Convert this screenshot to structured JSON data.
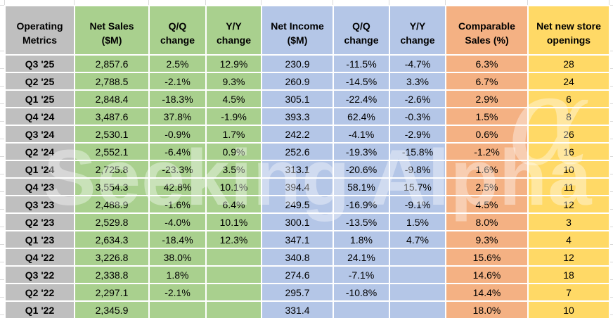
{
  "chart_data": {
    "type": "table",
    "title": "Operating Metrics",
    "column_groups": [
      {
        "name": "quarter-labels",
        "color": "#bfbfbf"
      },
      {
        "name": "net-sales",
        "color": "#a9d08e"
      },
      {
        "name": "net-income",
        "color": "#b4c6e7"
      },
      {
        "name": "comparable-sales",
        "color": "#f4b183"
      },
      {
        "name": "store-openings",
        "color": "#ffd966"
      }
    ],
    "columns": [
      {
        "key": "quarter",
        "label": "Operating\nMetrics",
        "group": "quarter-labels"
      },
      {
        "key": "net_sales",
        "label": "Net Sales\n($M)",
        "group": "net-sales"
      },
      {
        "key": "ns_qq",
        "label": "Q/Q\nchange",
        "group": "net-sales"
      },
      {
        "key": "ns_yy",
        "label": "Y/Y\nchange",
        "group": "net-sales"
      },
      {
        "key": "net_income",
        "label": "Net Income\n($M)",
        "group": "net-income"
      },
      {
        "key": "ni_qq",
        "label": "Q/Q\nchange",
        "group": "net-income"
      },
      {
        "key": "ni_yy",
        "label": "Y/Y\nchange",
        "group": "net-income"
      },
      {
        "key": "comp_sales",
        "label": "Comparable\nSales (%)",
        "group": "comparable-sales"
      },
      {
        "key": "new_stores",
        "label": "Net new store\nopenings",
        "group": "store-openings"
      }
    ],
    "rows": [
      [
        "Q3 '25",
        "2,857.6",
        "2.5%",
        "12.9%",
        "230.9",
        "-11.5%",
        "-4.7%",
        "6.3%",
        "28"
      ],
      [
        "Q2 '25",
        "2,788.5",
        "-2.1%",
        "9.3%",
        "260.9",
        "-14.5%",
        "3.3%",
        "6.7%",
        "24"
      ],
      [
        "Q1 '25",
        "2,848.4",
        "-18.3%",
        "4.5%",
        "305.1",
        "-22.4%",
        "-2.6%",
        "2.9%",
        "6"
      ],
      [
        "Q4 '24",
        "3,487.6",
        "37.8%",
        "-1.9%",
        "393.3",
        "62.4%",
        "-0.3%",
        "1.5%",
        "8"
      ],
      [
        "Q3 '24",
        "2,530.1",
        "-0.9%",
        "1.7%",
        "242.2",
        "-4.1%",
        "-2.9%",
        "0.6%",
        "26"
      ],
      [
        "Q2 '24",
        "2,552.1",
        "-6.4%",
        "0.9%",
        "252.6",
        "-19.3%",
        "-15.8%",
        "-1.2%",
        "16"
      ],
      [
        "Q1 '24",
        "2,725.8",
        "-23.3%",
        "3.5%",
        "313.1",
        "-20.6%",
        "-9.8%",
        "1.6%",
        "10"
      ],
      [
        "Q4 '23",
        "3,554.3",
        "42.8%",
        "10.1%",
        "394.4",
        "58.1%",
        "15.7%",
        "2.5%",
        "11"
      ],
      [
        "Q3 '23",
        "2,488.9",
        "-1.6%",
        "6.4%",
        "249.5",
        "-16.9%",
        "-9.1%",
        "4.5%",
        "12"
      ],
      [
        "Q2 '23",
        "2,529.8",
        "-4.0%",
        "10.1%",
        "300.1",
        "-13.5%",
        "1.5%",
        "8.0%",
        "3"
      ],
      [
        "Q1 '23",
        "2,634.3",
        "-18.4%",
        "12.3%",
        "347.1",
        "1.8%",
        "4.7%",
        "9.3%",
        "4"
      ],
      [
        "Q4 '22",
        "3,226.8",
        "38.0%",
        "",
        "340.8",
        "24.1%",
        "",
        "15.6%",
        "12"
      ],
      [
        "Q3 '22",
        "2,338.8",
        "1.8%",
        "",
        "274.6",
        "-7.1%",
        "",
        "14.6%",
        "18"
      ],
      [
        "Q2 '22",
        "2,297.1",
        "-2.1%",
        "",
        "295.7",
        "-10.8%",
        "",
        "14.4%",
        "7"
      ],
      [
        "Q1 '22",
        "2,345.9",
        "",
        "",
        "331.4",
        "",
        "",
        "18.0%",
        "10"
      ]
    ]
  },
  "watermark": {
    "text": "Seeking Alpha",
    "glyph": "α"
  },
  "colors": {
    "quarter_column": "#bfbfbf",
    "net_sales_columns": "#a9d08e",
    "net_income_columns": "#b4c6e7",
    "comparable_sales_column": "#f4b183",
    "store_openings_column": "#ffd966",
    "cell_border": "#ffffff",
    "margin_gridline": "#d9d9d9",
    "text": "#000000"
  }
}
